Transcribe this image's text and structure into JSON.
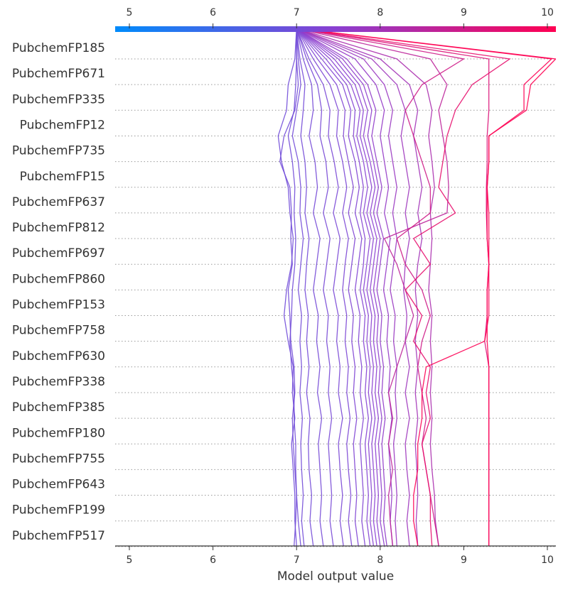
{
  "chart_data": {
    "type": "line",
    "plot_kind": "decision-plot",
    "xlabel": "Model output value",
    "xlim": [
      4.83,
      10.1
    ],
    "x_ticks": [
      5,
      6,
      7,
      8,
      9,
      10
    ],
    "x_tick_labels": [
      "5",
      "6",
      "7",
      "8",
      "9",
      "10"
    ],
    "features_top_to_bottom": [
      "PubchemFP185",
      "PubchemFP671",
      "PubchemFP335",
      "PubchemFP12",
      "PubchemFP735",
      "PubchemFP15",
      "PubchemFP637",
      "PubchemFP812",
      "PubchemFP697",
      "PubchemFP860",
      "PubchemFP153",
      "PubchemFP758",
      "PubchemFP630",
      "PubchemFP338",
      "PubchemFP385",
      "PubchemFP180",
      "PubchemFP755",
      "PubchemFP643",
      "PubchemFP199",
      "PubchemFP517"
    ],
    "base_value": 7.0,
    "colormap": {
      "low": "#008bfb",
      "mid": "#8a3fd1",
      "high": "#ff0052"
    },
    "grid": "dotted horizontal per feature",
    "legend": "colorbar top",
    "series": [
      {
        "path_top_to_bottom": [
          7.0,
          7.0,
          7.02,
          6.98,
          6.85,
          6.8,
          6.92,
          6.94,
          6.93,
          6.95,
          6.9,
          6.92,
          6.93,
          6.97,
          6.98,
          6.95,
          6.96,
          6.98,
          7.0,
          7.02,
          7.05
        ]
      },
      {
        "path_top_to_bottom": [
          7.0,
          6.98,
          6.9,
          6.88,
          6.78,
          6.82,
          6.9,
          6.92,
          6.96,
          6.94,
          6.88,
          6.85,
          6.9,
          6.96,
          6.95,
          6.98,
          6.94,
          6.96,
          6.98,
          6.98,
          7.0
        ]
      },
      {
        "path_top_to_bottom": [
          7.0,
          7.0,
          6.99,
          6.97,
          6.9,
          6.95,
          6.98,
          6.97,
          6.99,
          6.98,
          6.95,
          6.94,
          6.92,
          6.94,
          6.97,
          6.97,
          6.99,
          6.99,
          7.0,
          6.99,
          6.97
        ]
      },
      {
        "path_top_to_bottom": [
          7.0,
          7.02,
          7.05,
          7.0,
          6.95,
          7.02,
          7.05,
          7.04,
          7.08,
          7.05,
          7.02,
          7.06,
          7.04,
          7.06,
          7.04,
          7.07,
          7.05,
          7.06,
          7.08,
          7.06,
          7.09
        ]
      },
      {
        "path_top_to_bottom": [
          7.0,
          7.04,
          7.1,
          7.08,
          7.05,
          7.1,
          7.12,
          7.1,
          7.15,
          7.12,
          7.1,
          7.14,
          7.12,
          7.15,
          7.12,
          7.16,
          7.14,
          7.15,
          7.18,
          7.16,
          7.2
        ]
      },
      {
        "path_top_to_bottom": [
          7.0,
          7.08,
          7.18,
          7.2,
          7.15,
          7.22,
          7.25,
          7.2,
          7.28,
          7.24,
          7.2,
          7.26,
          7.24,
          7.28,
          7.25,
          7.3,
          7.26,
          7.28,
          7.3,
          7.28,
          7.32
        ]
      },
      {
        "path_top_to_bottom": [
          7.0,
          7.12,
          7.25,
          7.3,
          7.28,
          7.35,
          7.38,
          7.32,
          7.4,
          7.36,
          7.32,
          7.38,
          7.36,
          7.4,
          7.38,
          7.42,
          7.38,
          7.4,
          7.42,
          7.4,
          7.44
        ]
      },
      {
        "path_top_to_bottom": [
          7.0,
          7.15,
          7.32,
          7.4,
          7.38,
          7.45,
          7.5,
          7.44,
          7.52,
          7.48,
          7.44,
          7.5,
          7.48,
          7.52,
          7.5,
          7.55,
          7.5,
          7.52,
          7.55,
          7.52,
          7.56
        ]
      },
      {
        "path_top_to_bottom": [
          7.0,
          7.2,
          7.4,
          7.5,
          7.48,
          7.55,
          7.6,
          7.55,
          7.62,
          7.58,
          7.55,
          7.6,
          7.58,
          7.62,
          7.6,
          7.64,
          7.6,
          7.62,
          7.65,
          7.62,
          7.66
        ]
      },
      {
        "path_top_to_bottom": [
          7.0,
          7.25,
          7.48,
          7.58,
          7.56,
          7.62,
          7.68,
          7.62,
          7.7,
          7.66,
          7.62,
          7.68,
          7.66,
          7.7,
          7.68,
          7.72,
          7.68,
          7.7,
          7.72,
          7.7,
          7.74
        ]
      },
      {
        "path_top_to_bottom": [
          7.0,
          7.3,
          7.55,
          7.65,
          7.62,
          7.7,
          7.75,
          7.7,
          7.78,
          7.74,
          7.7,
          7.76,
          7.74,
          7.78,
          7.76,
          7.8,
          7.76,
          7.78,
          7.8,
          7.78,
          7.82
        ]
      },
      {
        "path_top_to_bottom": [
          7.0,
          7.35,
          7.6,
          7.7,
          7.68,
          7.75,
          7.8,
          7.76,
          7.82,
          7.8,
          7.76,
          7.82,
          7.8,
          7.84,
          7.82,
          7.86,
          7.82,
          7.84,
          7.86,
          7.84,
          7.88
        ]
      },
      {
        "path_top_to_bottom": [
          7.0,
          7.4,
          7.65,
          7.76,
          7.72,
          7.8,
          7.85,
          7.8,
          7.88,
          7.84,
          7.8,
          7.86,
          7.84,
          7.88,
          7.86,
          7.9,
          7.86,
          7.88,
          7.9,
          7.88,
          7.92
        ]
      },
      {
        "path_top_to_bottom": [
          7.0,
          7.45,
          7.7,
          7.8,
          7.76,
          7.84,
          7.9,
          7.84,
          7.92,
          7.88,
          7.84,
          7.9,
          7.88,
          7.92,
          7.9,
          7.94,
          7.9,
          7.92,
          7.94,
          7.92,
          7.96
        ]
      },
      {
        "path_top_to_bottom": [
          7.0,
          7.5,
          7.75,
          7.85,
          7.8,
          7.88,
          7.94,
          7.88,
          7.96,
          7.92,
          7.88,
          7.94,
          7.92,
          7.96,
          7.94,
          7.98,
          7.94,
          7.96,
          7.98,
          7.96,
          8.0
        ]
      },
      {
        "path_top_to_bottom": [
          7.0,
          7.55,
          7.8,
          7.9,
          7.85,
          7.92,
          7.98,
          7.92,
          8.0,
          7.96,
          7.92,
          7.98,
          7.96,
          8.0,
          7.98,
          8.02,
          7.98,
          8.0,
          8.02,
          8.0,
          8.05
        ]
      },
      {
        "path_top_to_bottom": [
          7.0,
          7.6,
          7.85,
          7.95,
          7.9,
          7.96,
          8.02,
          7.96,
          8.04,
          8.0,
          7.96,
          8.02,
          8.0,
          8.04,
          8.02,
          8.06,
          8.02,
          8.04,
          8.06,
          8.04,
          8.08
        ]
      },
      {
        "path_top_to_bottom": [
          7.0,
          7.7,
          7.95,
          8.05,
          8.0,
          8.05,
          8.1,
          8.05,
          8.12,
          8.08,
          8.04,
          8.1,
          8.08,
          8.12,
          8.1,
          8.14,
          8.1,
          8.12,
          8.14,
          8.12,
          8.15
        ]
      },
      {
        "path_top_to_bottom": [
          7.0,
          7.8,
          8.05,
          8.15,
          8.1,
          8.15,
          8.2,
          8.15,
          8.2,
          8.16,
          8.12,
          8.18,
          8.16,
          8.2,
          8.18,
          8.2,
          8.16,
          8.18,
          8.2,
          8.18,
          8.2
        ]
      },
      {
        "path_top_to_bottom": [
          7.0,
          7.9,
          8.2,
          8.3,
          8.25,
          8.3,
          8.35,
          8.3,
          8.35,
          8.3,
          8.28,
          8.32,
          8.3,
          8.35,
          8.3,
          8.35,
          8.3,
          8.32,
          8.35,
          8.32,
          8.35
        ]
      },
      {
        "path_top_to_bottom": [
          7.0,
          8.0,
          8.35,
          8.45,
          8.4,
          8.45,
          8.5,
          8.45,
          8.5,
          8.45,
          8.42,
          8.45,
          8.42,
          8.45,
          8.42,
          8.45,
          8.42,
          8.44,
          8.45,
          8.43,
          8.45
        ]
      },
      {
        "path_top_to_bottom": [
          7.0,
          8.2,
          8.55,
          8.62,
          8.58,
          8.62,
          8.65,
          8.6,
          8.62,
          8.6,
          8.58,
          8.62,
          8.6,
          8.62,
          8.6,
          8.62,
          8.6,
          8.62,
          8.65,
          8.66,
          8.7
        ]
      },
      {
        "path_top_to_bottom": [
          7.0,
          8.6,
          8.8,
          8.7,
          8.75,
          8.8,
          8.82,
          8.8,
          8.05,
          8.2,
          8.3,
          8.4,
          8.3,
          8.2,
          8.1,
          8.15,
          8.1,
          8.15,
          8.1,
          8.12,
          8.15
        ]
      },
      {
        "path_top_to_bottom": [
          7.0,
          9.0,
          8.5,
          8.3,
          8.4,
          8.5,
          8.6,
          8.6,
          8.2,
          8.3,
          8.5,
          8.6,
          8.5,
          8.45,
          8.5,
          8.55,
          8.5,
          8.55,
          8.6,
          8.65,
          8.7
        ]
      },
      {
        "path_top_to_bottom": [
          7.0,
          9.3,
          9.3,
          9.3,
          9.28,
          9.28,
          9.27,
          9.27,
          9.28,
          9.3,
          9.28,
          9.28,
          9.25,
          9.3,
          9.3,
          9.3,
          9.3,
          9.3,
          9.3,
          9.3,
          9.3
        ]
      },
      {
        "path_top_to_bottom": [
          7.0,
          9.55,
          9.1,
          8.9,
          8.8,
          8.75,
          8.7,
          8.9,
          8.4,
          8.6,
          8.3,
          8.5,
          8.4,
          8.6,
          8.55,
          8.6,
          8.5,
          8.55,
          8.6,
          8.6,
          8.62
        ]
      },
      {
        "path_top_to_bottom": [
          7.0,
          10.05,
          9.72,
          9.72,
          9.3,
          9.3,
          9.28,
          9.28,
          9.28,
          9.3,
          9.3,
          9.3,
          9.25,
          8.55,
          8.5,
          8.5,
          8.45,
          8.45,
          8.4,
          8.4,
          8.45
        ]
      },
      {
        "path_top_to_bottom": [
          7.0,
          10.1,
          9.8,
          9.75,
          9.3,
          9.3,
          9.28,
          9.3,
          9.3,
          9.3,
          9.28,
          9.28,
          9.28,
          9.3,
          9.3,
          9.3,
          9.3,
          9.3,
          9.3,
          9.3,
          9.3
        ]
      }
    ]
  }
}
